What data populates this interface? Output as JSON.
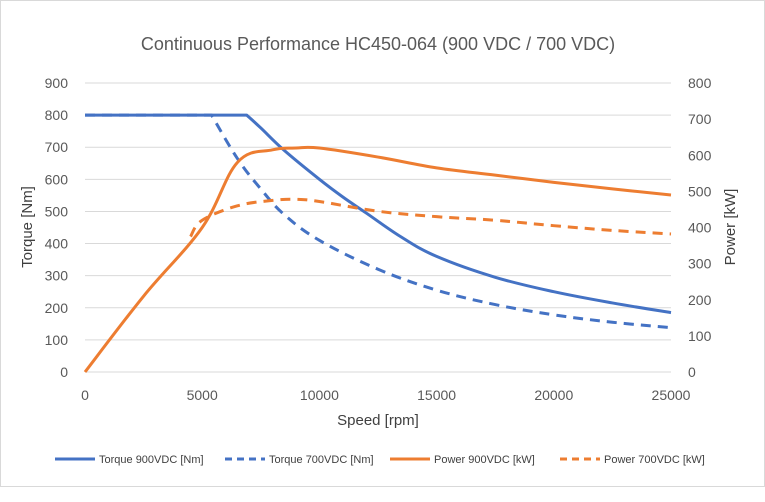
{
  "chart_data": {
    "type": "line",
    "title": "Continuous Performance HC450-064 (900 VDC / 700 VDC)",
    "xlabel": "Speed [rpm]",
    "ylabel_left": "Torque [Nm]",
    "ylabel_right": "Power [kW]",
    "xlim": [
      0,
      25000
    ],
    "ylim_left": [
      0,
      900
    ],
    "ylim_right": [
      0,
      800
    ],
    "x_ticks": [
      "0",
      "5000",
      "10000",
      "15000",
      "20000",
      "25000"
    ],
    "y_left_ticks": [
      "0",
      "100",
      "200",
      "300",
      "400",
      "500",
      "600",
      "700",
      "800",
      "900"
    ],
    "y_right_ticks": [
      "0",
      "100",
      "200",
      "300",
      "400",
      "500",
      "600",
      "700",
      "800"
    ],
    "grid": true,
    "legend_position": "bottom",
    "series": [
      {
        "name": "Torque 900VDC [Nm]",
        "axis": "left",
        "color": "#4472c4",
        "dash": "solid",
        "x": [
          0,
          5000,
          6900,
          7500,
          8500,
          10000,
          11000,
          12000,
          13500,
          15000,
          17500,
          20000,
          22500,
          25000
        ],
        "y": [
          800,
          800,
          800,
          760,
          690,
          600,
          545,
          495,
          420,
          360,
          295,
          250,
          215,
          185
        ]
      },
      {
        "name": "Torque 700VDC [Nm]",
        "axis": "left",
        "color": "#4472c4",
        "dash": "dashed",
        "x": [
          5400,
          6500,
          7500,
          8500,
          10000,
          12500,
          15000,
          17500,
          20000,
          22500,
          25000
        ],
        "y": [
          800,
          665,
          570,
          490,
          410,
          320,
          255,
          210,
          178,
          155,
          138
        ]
      },
      {
        "name": "Power 900VDC [kW]",
        "axis": "right",
        "color": "#ed7d31",
        "dash": "solid",
        "x": [
          0,
          2500,
          5000,
          6500,
          8000,
          9000,
          10000,
          12500,
          15000,
          17500,
          20000,
          22500,
          25000
        ],
        "y": [
          0,
          210,
          400,
          580,
          615,
          620,
          620,
          595,
          565,
          545,
          525,
          507,
          490
        ]
      },
      {
        "name": "Power 700VDC [kW]",
        "axis": "right",
        "color": "#ed7d31",
        "dash": "dashed",
        "x": [
          4500,
          5000,
          6500,
          8000,
          9000,
          10000,
          12500,
          15000,
          17500,
          20000,
          22500,
          25000
        ],
        "y": [
          375,
          420,
          460,
          475,
          478,
          472,
          445,
          430,
          420,
          405,
          392,
          382
        ]
      }
    ]
  }
}
